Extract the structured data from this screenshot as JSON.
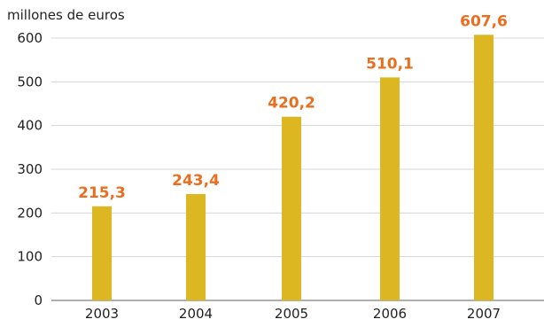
{
  "chart_data": {
    "type": "bar",
    "title": "",
    "unit_label": "millones de euros",
    "xlabel": "",
    "ylabel": "",
    "categories": [
      "2003",
      "2004",
      "2005",
      "2006",
      "2007"
    ],
    "values": [
      215.3,
      243.4,
      420.2,
      510.1,
      607.6
    ],
    "data_labels": [
      "215,3",
      "243,4",
      "420,2",
      "510,1",
      "607,6"
    ],
    "ylim": [
      0,
      600
    ],
    "yticks": [
      0,
      100,
      200,
      300,
      400,
      500,
      600
    ],
    "grid": true,
    "colors": {
      "bar": "#DDB722",
      "data_label": "#EB6E1F",
      "grid": "#D4D4D4",
      "baseline": "#7F7F7F"
    }
  }
}
